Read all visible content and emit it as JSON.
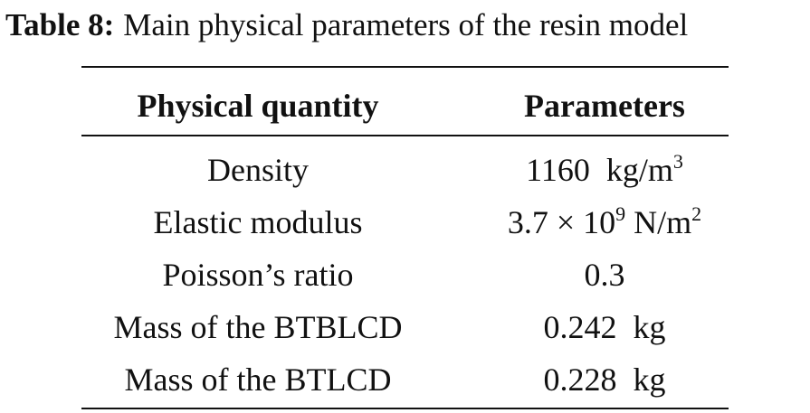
{
  "caption": {
    "label": "Table 8:",
    "text": "Main physical parameters of the resin model"
  },
  "table": {
    "header": [
      "Physical quantity",
      "Parameters"
    ],
    "rows": [
      [
        "Density",
        [
          "1160  kg/m",
          "3"
        ]
      ],
      [
        "Elastic modulus",
        [
          "3.7 × 10",
          "9",
          " N/m",
          "2"
        ]
      ],
      [
        "Poisson’s ratio",
        [
          "0.3"
        ]
      ],
      [
        "Mass of the BTBLCD",
        [
          "0.242  kg"
        ]
      ],
      [
        "Mass of the BTLCD",
        [
          "0.228  kg"
        ]
      ]
    ]
  }
}
